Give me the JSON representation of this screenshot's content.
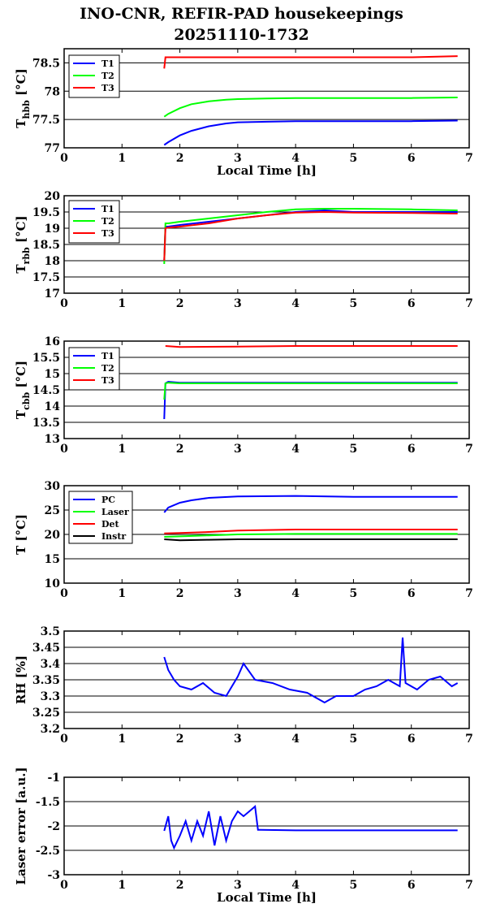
{
  "title_line1": "INO-CNR, REFIR-PAD housekeepings",
  "title_line2": "20251110-1732",
  "colors": {
    "blue": "#0000ff",
    "green": "#00ff00",
    "red": "#ff0000",
    "black": "#000000"
  },
  "chart_data": [
    {
      "type": "line",
      "ylabel_main": "T",
      "ylabel_sub": "hbb",
      "ylabel_unit": " [°C]",
      "xlabel": "Local Time [h]",
      "xlim": [
        0,
        7
      ],
      "ylim": [
        77,
        78.75
      ],
      "xticks": [
        0,
        1,
        2,
        3,
        4,
        5,
        6,
        7
      ],
      "yticks": [
        77,
        77.5,
        78,
        78.5
      ],
      "ytick_labels": [
        "77",
        "77.5",
        "78",
        "78.5"
      ],
      "grid": true,
      "legend": "top-left",
      "series": [
        {
          "name": "T1",
          "color": "blue",
          "x": [
            1.73,
            1.8,
            2.0,
            2.2,
            2.5,
            2.8,
            3.0,
            3.5,
            4,
            5,
            6,
            6.8
          ],
          "y": [
            77.05,
            77.1,
            77.22,
            77.3,
            77.38,
            77.43,
            77.45,
            77.46,
            77.47,
            77.47,
            77.47,
            77.48
          ]
        },
        {
          "name": "T2",
          "color": "green",
          "x": [
            1.73,
            1.8,
            2.0,
            2.2,
            2.5,
            2.8,
            3.0,
            3.5,
            4,
            5,
            6,
            6.8
          ],
          "y": [
            77.55,
            77.6,
            77.7,
            77.77,
            77.82,
            77.85,
            77.86,
            77.87,
            77.88,
            77.88,
            77.88,
            77.89
          ]
        },
        {
          "name": "T3",
          "color": "red",
          "x": [
            1.73,
            1.75,
            1.8,
            2.0,
            3.0,
            4,
            5,
            6,
            6.8
          ],
          "y": [
            78.4,
            78.6,
            78.6,
            78.6,
            78.6,
            78.6,
            78.6,
            78.6,
            78.62
          ]
        }
      ]
    },
    {
      "type": "line",
      "ylabel_main": "T",
      "ylabel_sub": "rbb",
      "ylabel_unit": " [°C]",
      "xlabel": "",
      "xlim": [
        0,
        7
      ],
      "ylim": [
        17,
        20
      ],
      "xticks": [
        0,
        1,
        2,
        3,
        4,
        5,
        6,
        7
      ],
      "yticks": [
        17,
        17.5,
        18,
        18.5,
        19,
        19.5,
        20
      ],
      "ytick_labels": [
        "17",
        "17.5",
        "18",
        "18.5",
        "19",
        "19.5",
        "20"
      ],
      "grid": true,
      "legend": "top-left",
      "series": [
        {
          "name": "T1",
          "color": "blue",
          "x": [
            1.73,
            1.75,
            1.8,
            2.0,
            2.5,
            3.0,
            3.5,
            4.0,
            4.5,
            5,
            6,
            6.8
          ],
          "y": [
            18.0,
            19.05,
            19.05,
            19.1,
            19.2,
            19.3,
            19.4,
            19.5,
            19.55,
            19.5,
            19.5,
            19.5
          ]
        },
        {
          "name": "T2",
          "color": "green",
          "x": [
            1.73,
            1.75,
            1.8,
            2.0,
            2.5,
            3.0,
            3.5,
            4.0,
            4.5,
            5,
            6,
            6.8
          ],
          "y": [
            17.9,
            19.15,
            19.15,
            19.2,
            19.3,
            19.4,
            19.5,
            19.58,
            19.6,
            19.6,
            19.58,
            19.55
          ]
        },
        {
          "name": "T3",
          "color": "red",
          "x": [
            1.73,
            1.75,
            1.8,
            2.0,
            2.5,
            3.0,
            3.5,
            4.0,
            4.5,
            5,
            6,
            6.8
          ],
          "y": [
            18.0,
            19.0,
            19.02,
            19.05,
            19.15,
            19.3,
            19.4,
            19.48,
            19.5,
            19.48,
            19.47,
            19.45
          ]
        }
      ]
    },
    {
      "type": "line",
      "ylabel_main": "T",
      "ylabel_sub": "cbb",
      "ylabel_unit": " [°C]",
      "xlabel": "",
      "xlim": [
        0,
        7
      ],
      "ylim": [
        13,
        16
      ],
      "xticks": [
        0,
        1,
        2,
        3,
        4,
        5,
        6,
        7
      ],
      "yticks": [
        13,
        13.5,
        14,
        14.5,
        15,
        15.5,
        16
      ],
      "ytick_labels": [
        "13",
        "13.5",
        "14",
        "14.5",
        "15",
        "15.5",
        "16"
      ],
      "grid": true,
      "legend": "top-left",
      "series": [
        {
          "name": "T1",
          "color": "blue",
          "x": [
            1.73,
            1.75,
            1.8,
            2.0,
            3.0,
            4,
            5,
            6,
            6.8
          ],
          "y": [
            13.6,
            14.7,
            14.75,
            14.72,
            14.72,
            14.72,
            14.72,
            14.72,
            14.72
          ]
        },
        {
          "name": "T2",
          "color": "green",
          "x": [
            1.73,
            1.75,
            1.8,
            2.0,
            3.0,
            4,
            5,
            6,
            6.8
          ],
          "y": [
            14.2,
            14.7,
            14.72,
            14.7,
            14.7,
            14.7,
            14.7,
            14.7,
            14.7
          ]
        },
        {
          "name": "T3",
          "color": "red",
          "x": [
            1.75,
            2.0,
            3.0,
            4,
            5,
            6,
            6.8
          ],
          "y": [
            15.85,
            15.82,
            15.83,
            15.85,
            15.85,
            15.85,
            15.85
          ]
        }
      ]
    },
    {
      "type": "line",
      "ylabel_main": "T [°C]",
      "ylabel_sub": "",
      "ylabel_unit": "",
      "xlabel": "",
      "xlim": [
        0,
        7
      ],
      "ylim": [
        10,
        30
      ],
      "xticks": [
        0,
        1,
        2,
        3,
        4,
        5,
        6,
        7
      ],
      "yticks": [
        10,
        15,
        20,
        25,
        30
      ],
      "ytick_labels": [
        "10",
        "15",
        "20",
        "25",
        "30"
      ],
      "grid": true,
      "legend": "top-left",
      "series": [
        {
          "name": "PC",
          "color": "blue",
          "x": [
            1.73,
            1.8,
            2.0,
            2.2,
            2.5,
            3.0,
            4,
            5,
            6,
            6.8
          ],
          "y": [
            24.5,
            25.5,
            26.5,
            27.0,
            27.5,
            27.8,
            27.9,
            27.7,
            27.7,
            27.7
          ]
        },
        {
          "name": "Laser",
          "color": "green",
          "x": [
            1.73,
            2.0,
            2.5,
            3.0,
            4,
            5,
            6,
            6.8
          ],
          "y": [
            19.5,
            19.6,
            19.8,
            20.0,
            20.1,
            20.1,
            20.1,
            20.1
          ]
        },
        {
          "name": "Det",
          "color": "red",
          "x": [
            1.73,
            2.0,
            2.5,
            3.0,
            4,
            5,
            6,
            6.8
          ],
          "y": [
            20.2,
            20.3,
            20.5,
            20.8,
            21.0,
            21.0,
            21.0,
            21.0
          ]
        },
        {
          "name": "Instr",
          "color": "black",
          "x": [
            1.73,
            2.0,
            2.5,
            3.0,
            4,
            5,
            6,
            6.8
          ],
          "y": [
            19.0,
            18.8,
            18.9,
            19.0,
            19.0,
            19.0,
            19.0,
            19.0
          ]
        }
      ]
    },
    {
      "type": "line",
      "ylabel_main": "RH [%]",
      "ylabel_sub": "",
      "ylabel_unit": "",
      "xlabel": "",
      "xlim": [
        0,
        7
      ],
      "ylim": [
        3.2,
        3.5
      ],
      "xticks": [
        0,
        1,
        2,
        3,
        4,
        5,
        6,
        7
      ],
      "yticks": [
        3.2,
        3.25,
        3.3,
        3.35,
        3.4,
        3.45,
        3.5
      ],
      "ytick_labels": [
        "3.2",
        "3.25",
        "3.3",
        "3.35",
        "3.4",
        "3.45",
        "3.5"
      ],
      "grid": true,
      "legend": "none",
      "series": [
        {
          "name": "",
          "color": "blue",
          "x": [
            1.73,
            1.8,
            1.9,
            2.0,
            2.2,
            2.4,
            2.6,
            2.8,
            3.0,
            3.1,
            3.3,
            3.6,
            3.9,
            4.2,
            4.5,
            4.7,
            5.0,
            5.2,
            5.4,
            5.6,
            5.8,
            5.85,
            5.9,
            6.1,
            6.3,
            6.5,
            6.7,
            6.8
          ],
          "y": [
            3.42,
            3.38,
            3.35,
            3.33,
            3.32,
            3.34,
            3.31,
            3.3,
            3.36,
            3.4,
            3.35,
            3.34,
            3.32,
            3.31,
            3.28,
            3.3,
            3.3,
            3.32,
            3.33,
            3.35,
            3.33,
            3.48,
            3.34,
            3.32,
            3.35,
            3.36,
            3.33,
            3.34
          ]
        }
      ]
    },
    {
      "type": "line",
      "ylabel_main": "Laser error [a.u.]",
      "ylabel_sub": "",
      "ylabel_unit": "",
      "xlabel": "Local Time [h]",
      "xlim": [
        0,
        7
      ],
      "ylim": [
        -3,
        -1
      ],
      "xticks": [
        0,
        1,
        2,
        3,
        4,
        5,
        6,
        7
      ],
      "yticks": [
        -3,
        -2.5,
        -2,
        -1.5,
        -1
      ],
      "ytick_labels": [
        "-3",
        "-2.5",
        "-2",
        "-1.5",
        "-1"
      ],
      "grid": true,
      "legend": "none",
      "series": [
        {
          "name": "",
          "color": "blue",
          "x": [
            1.73,
            1.8,
            1.85,
            1.9,
            2.0,
            2.1,
            2.2,
            2.3,
            2.4,
            2.5,
            2.6,
            2.7,
            2.8,
            2.9,
            3.0,
            3.1,
            3.2,
            3.3,
            3.35,
            3.4,
            4,
            5,
            6,
            6.8
          ],
          "y": [
            -2.1,
            -1.8,
            -2.3,
            -2.45,
            -2.2,
            -1.9,
            -2.3,
            -1.9,
            -2.2,
            -1.7,
            -2.4,
            -1.8,
            -2.3,
            -1.9,
            -1.7,
            -1.8,
            -1.7,
            -1.6,
            -2.08,
            -2.08,
            -2.09,
            -2.09,
            -2.09,
            -2.09
          ]
        }
      ]
    }
  ]
}
